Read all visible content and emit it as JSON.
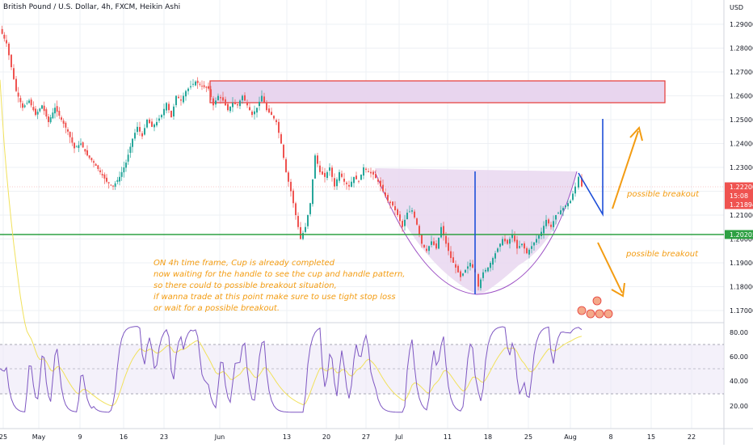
{
  "chart_title": "British Pound / U.S. Dollar, 4h, FXCM, Heikin Ashi",
  "currency": "USD",
  "colors": {
    "up": "#26a69a",
    "down": "#ef5350",
    "support_line": "#2ea043",
    "zone_border": "#e53935",
    "zone_fill": "#e8d5ee",
    "cup_fill": "#e9d7f0",
    "cup_stroke": "#9c4fc4",
    "blue_line": "#1e4fd8",
    "annotation": "#f39c12",
    "rsi_line": "#7e57c2",
    "rsi_ma": "#f1e15b"
  },
  "price_axis": {
    "ticks": [
      "1.29000",
      "1.28000",
      "1.27000",
      "1.26000",
      "1.25000",
      "1.24000",
      "1.23000",
      "1.22000",
      "1.21000",
      "1.20000",
      "1.19000",
      "1.18000",
      "1.17000"
    ],
    "badges": [
      {
        "label": "1.22200",
        "color": "#ef5350"
      },
      {
        "label": "15:08",
        "color": "#ef5350"
      },
      {
        "label": "1.21894",
        "color": "#ef5350"
      },
      {
        "label": "1.20205",
        "color": "#2ea043"
      }
    ]
  },
  "rsi_axis": {
    "ticks": [
      "80.00",
      "60.00",
      "40.00",
      "20.00"
    ]
  },
  "time_axis": {
    "labels": [
      "25",
      "May",
      "9",
      "16",
      "23",
      "Jun",
      "13",
      "20",
      "27",
      "Jul",
      "11",
      "18",
      "25",
      "Aug",
      "8",
      "15",
      "22"
    ]
  },
  "annotations": {
    "main_note": [
      "ON 4h time frame, Cup is already completed",
      "now waiting for the handle to see the cup and handle pattern,",
      "so there could to possible breakout situation,",
      " if wanna trade at this point make sure to use tight stop loss",
      "or wait for a possible breakout."
    ],
    "breakout_up": "possible breakout",
    "breakout_down": "possible breakout"
  },
  "chart_data": {
    "type": "candlestick",
    "title": "British Pound / U.S. Dollar, 4h, FXCM, Heikin Ashi",
    "ylim": [
      1.165,
      1.296
    ],
    "support_level": 1.20205,
    "resistance_zone": [
      1.257,
      1.266
    ],
    "last_price": 1.222,
    "ohlc_close_path": [
      [
        0,
        1.288
      ],
      [
        8,
        1.282
      ],
      [
        14,
        1.272
      ],
      [
        20,
        1.262
      ],
      [
        28,
        1.255
      ],
      [
        36,
        1.258
      ],
      [
        44,
        1.252
      ],
      [
        52,
        1.256
      ],
      [
        60,
        1.249
      ],
      [
        68,
        1.255
      ],
      [
        76,
        1.25
      ],
      [
        84,
        1.245
      ],
      [
        92,
        1.238
      ],
      [
        100,
        1.24
      ],
      [
        108,
        1.235
      ],
      [
        116,
        1.232
      ],
      [
        124,
        1.228
      ],
      [
        132,
        1.224
      ],
      [
        140,
        1.222
      ],
      [
        148,
        1.226
      ],
      [
        156,
        1.232
      ],
      [
        164,
        1.242
      ],
      [
        170,
        1.247
      ],
      [
        176,
        1.243
      ],
      [
        182,
        1.25
      ],
      [
        188,
        1.247
      ],
      [
        194,
        1.249
      ],
      [
        200,
        1.252
      ],
      [
        206,
        1.257
      ],
      [
        212,
        1.251
      ],
      [
        218,
        1.26
      ],
      [
        224,
        1.258
      ],
      [
        230,
        1.262
      ],
      [
        236,
        1.264
      ],
      [
        242,
        1.266
      ],
      [
        250,
        1.264
      ],
      [
        258,
        1.263
      ],
      [
        264,
        1.256
      ],
      [
        270,
        1.26
      ],
      [
        276,
        1.258
      ],
      [
        282,
        1.254
      ],
      [
        288,
        1.257
      ],
      [
        294,
        1.256
      ],
      [
        300,
        1.26
      ],
      [
        306,
        1.256
      ],
      [
        312,
        1.252
      ],
      [
        318,
        1.255
      ],
      [
        324,
        1.26
      ],
      [
        330,
        1.254
      ],
      [
        336,
        1.252
      ],
      [
        342,
        1.249
      ],
      [
        348,
        1.24
      ],
      [
        354,
        1.228
      ],
      [
        360,
        1.22
      ],
      [
        366,
        1.21
      ],
      [
        372,
        1.2
      ],
      [
        378,
        1.205
      ],
      [
        384,
        1.215
      ],
      [
        390,
        1.235
      ],
      [
        396,
        1.228
      ],
      [
        402,
        1.226
      ],
      [
        408,
        1.23
      ],
      [
        414,
        1.222
      ],
      [
        420,
        1.228
      ],
      [
        426,
        1.224
      ],
      [
        432,
        1.222
      ],
      [
        438,
        1.226
      ],
      [
        444,
        1.224
      ],
      [
        450,
        1.23
      ],
      [
        456,
        1.228
      ],
      [
        462,
        1.227
      ],
      [
        468,
        1.224
      ],
      [
        474,
        1.22
      ],
      [
        480,
        1.216
      ],
      [
        486,
        1.214
      ],
      [
        492,
        1.21
      ],
      [
        498,
        1.205
      ],
      [
        504,
        1.211
      ],
      [
        510,
        1.212
      ],
      [
        516,
        1.206
      ],
      [
        522,
        1.198
      ],
      [
        528,
        1.195
      ],
      [
        534,
        1.199
      ],
      [
        540,
        1.196
      ],
      [
        546,
        1.205
      ],
      [
        552,
        1.198
      ],
      [
        558,
        1.192
      ],
      [
        564,
        1.188
      ],
      [
        570,
        1.184
      ],
      [
        576,
        1.187
      ],
      [
        582,
        1.19
      ],
      [
        588,
        1.186
      ],
      [
        592,
        1.18
      ],
      [
        598,
        1.186
      ],
      [
        604,
        1.188
      ],
      [
        610,
        1.192
      ],
      [
        616,
        1.196
      ],
      [
        622,
        1.2
      ],
      [
        628,
        1.198
      ],
      [
        634,
        1.202
      ],
      [
        640,
        1.196
      ],
      [
        646,
        1.198
      ],
      [
        652,
        1.194
      ],
      [
        658,
        1.197
      ],
      [
        664,
        1.2
      ],
      [
        670,
        1.203
      ],
      [
        676,
        1.208
      ],
      [
        682,
        1.205
      ],
      [
        688,
        1.21
      ],
      [
        694,
        1.212
      ],
      [
        700,
        1.214
      ],
      [
        706,
        1.216
      ],
      [
        712,
        1.222
      ],
      [
        716,
        1.226
      ],
      [
        720,
        1.222
      ]
    ],
    "rsi_range": [
      0,
      100
    ],
    "rsi_levels": [
      70,
      50,
      30
    ]
  }
}
